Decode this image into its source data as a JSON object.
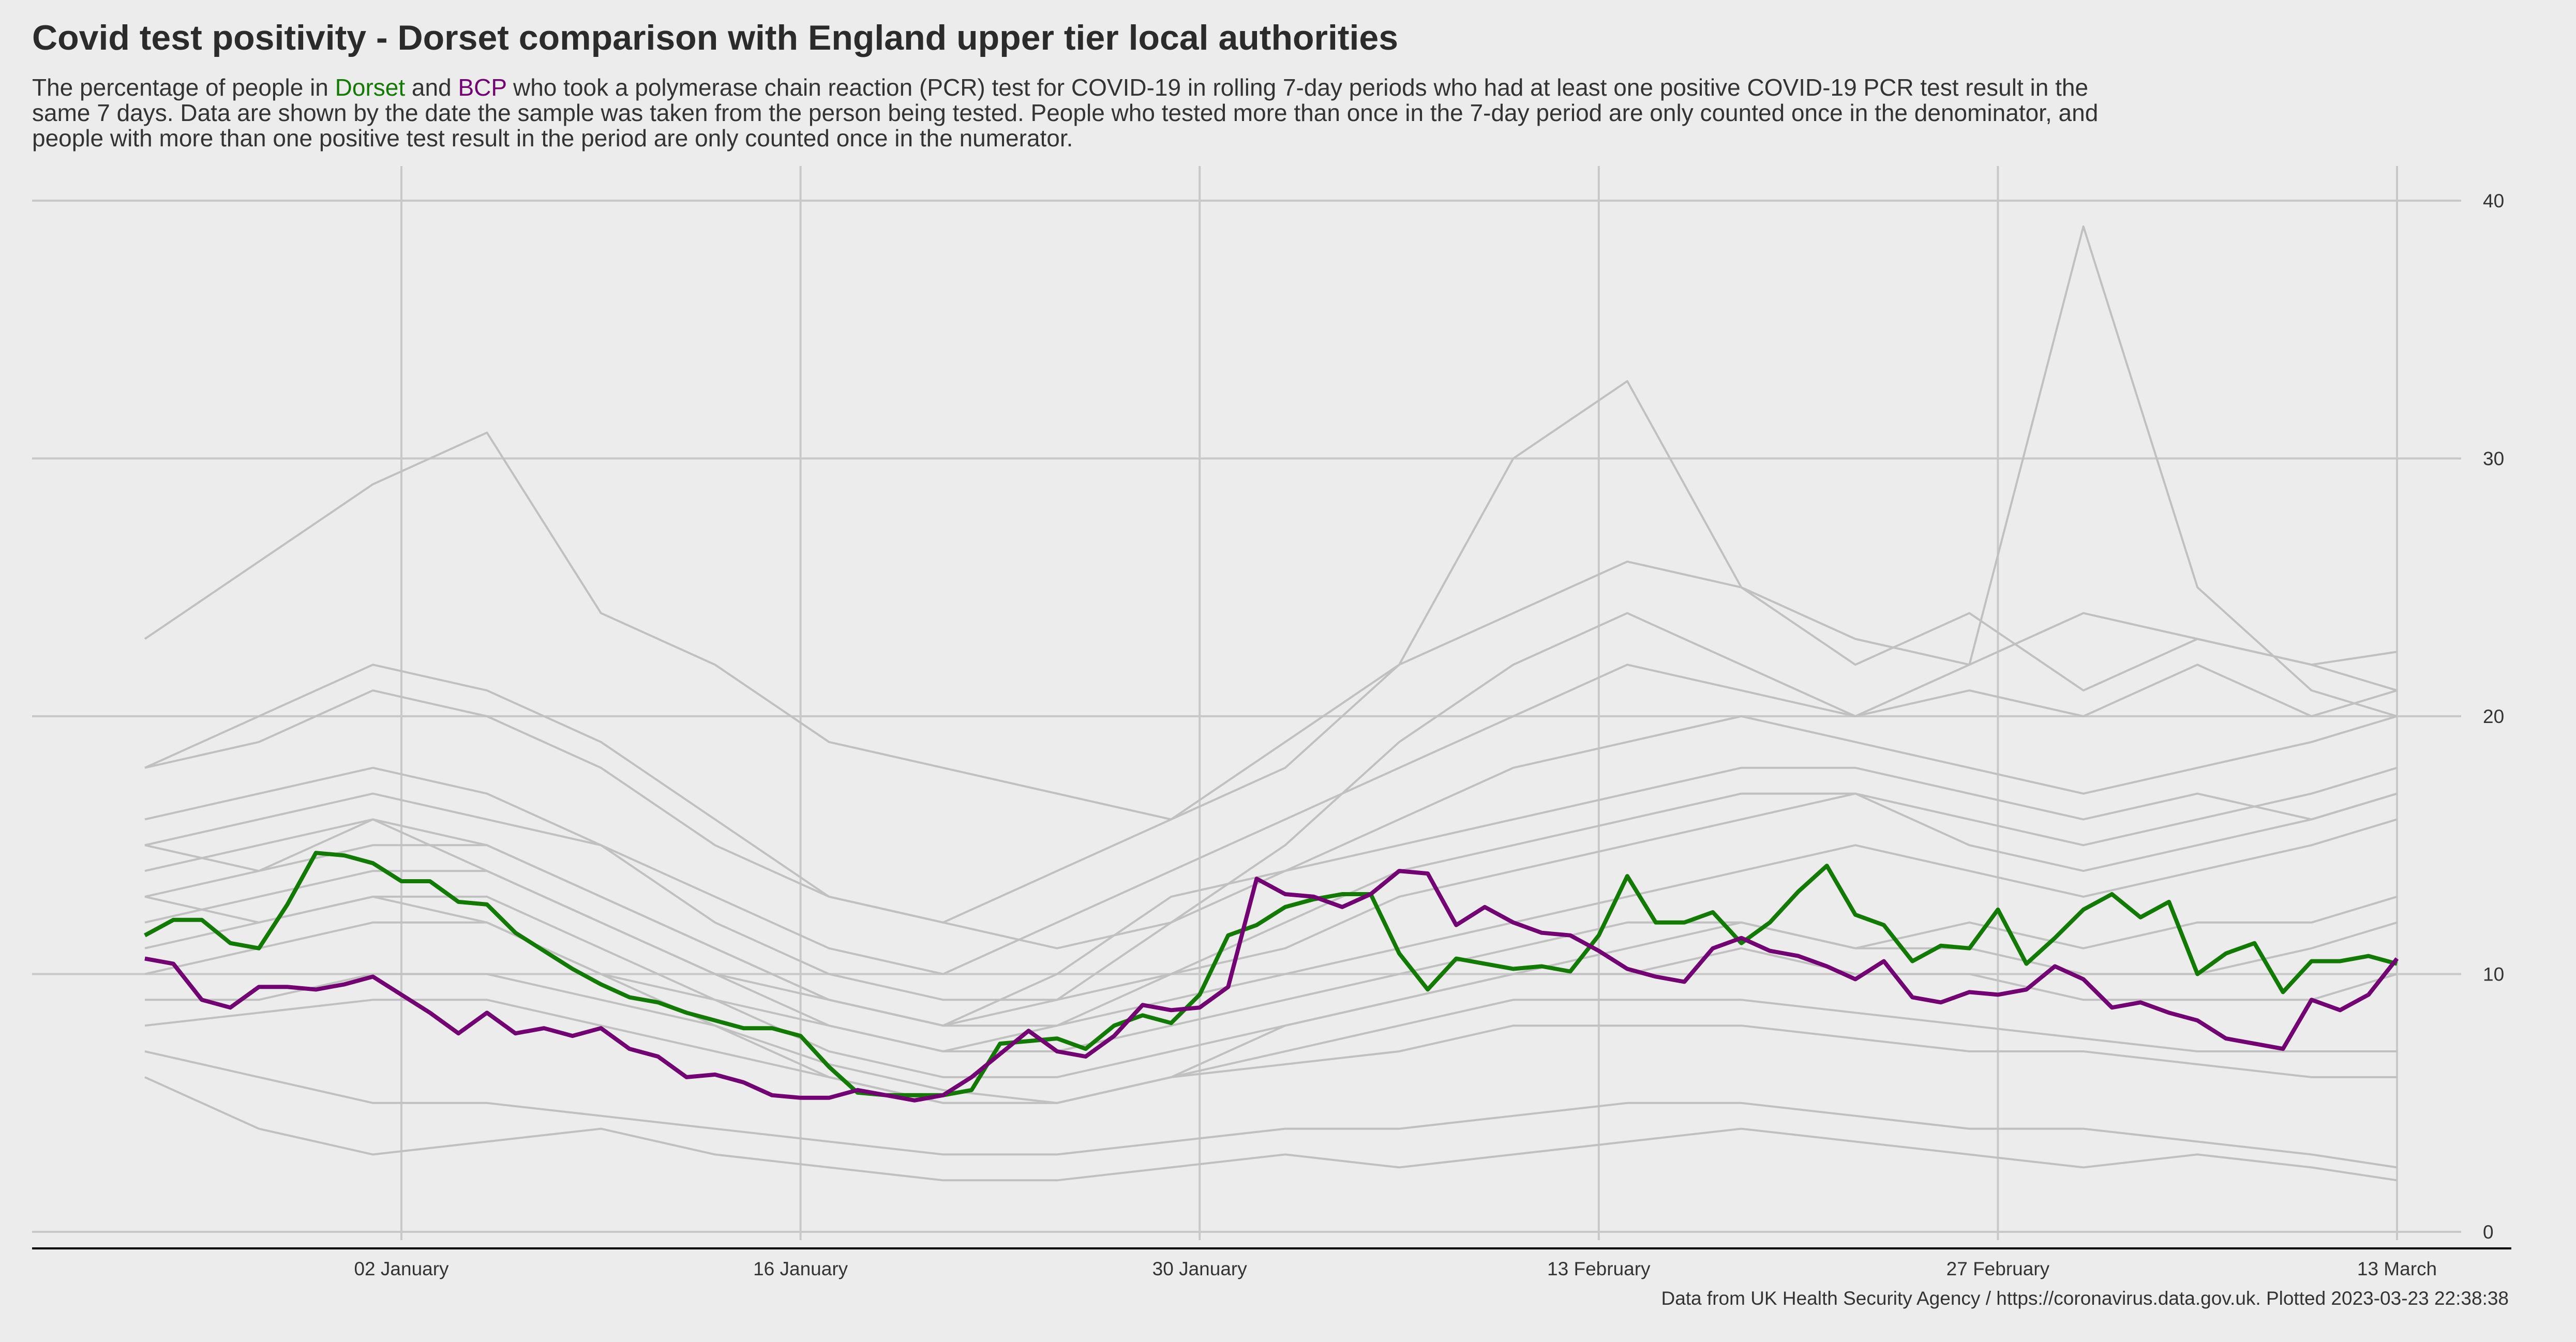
{
  "title": "Covid test positivity - Dorset comparison with England upper tier local authorities",
  "subtitle": {
    "part1": "The percentage of people in ",
    "dorset": "Dorset",
    "part2": " and ",
    "bcp": "BCP",
    "part3": " who took a polymerase chain reaction (PCR) test for COVID-19 in rolling 7-day periods who had at least one positive COVID-19 PCR test result in the same 7 days. Data are shown by the date the sample was taken from the person being tested. People who tested more than once in the 7-day period are only counted once in the denominator, and people with more than one positive test result in the period are only counted once in the numerator."
  },
  "caption": "Data from UK Health Security Agency / https://coronavirus.data.gov.uk. Plotted 2023-03-23 22:38:38",
  "colors": {
    "dorset": "#127a00",
    "bcp": "#720072",
    "other": "#c0c0c0",
    "grid": "#c8c8c8",
    "background": "#ececec"
  },
  "chart_data": {
    "type": "line",
    "title": "Covid test positivity - Dorset comparison with England upper tier local authorities",
    "xlabel": "",
    "ylabel": "",
    "y_axis_position": "right",
    "ylim": [
      0,
      40
    ],
    "xlim": [
      "2022-12-24",
      "2023-03-13"
    ],
    "grid": true,
    "legend": "none (series named in subtitle text)",
    "y_ticks": [
      "0",
      "10",
      "20",
      "30",
      "40"
    ],
    "x_ticks": [
      {
        "date": "2023-01-02",
        "label": "02 January"
      },
      {
        "date": "2023-01-16",
        "label": "16 January"
      },
      {
        "date": "2023-01-30",
        "label": "30 January"
      },
      {
        "date": "2023-02-13",
        "label": "13 February"
      },
      {
        "date": "2023-02-27",
        "label": "27 February"
      },
      {
        "date": "2023-03-13",
        "label": "13 March"
      }
    ],
    "x": [
      "2022-12-24",
      "2022-12-25",
      "2022-12-26",
      "2022-12-27",
      "2022-12-28",
      "2022-12-29",
      "2022-12-30",
      "2022-12-31",
      "2023-01-01",
      "2023-01-02",
      "2023-01-03",
      "2023-01-04",
      "2023-01-05",
      "2023-01-06",
      "2023-01-07",
      "2023-01-08",
      "2023-01-09",
      "2023-01-10",
      "2023-01-11",
      "2023-01-12",
      "2023-01-13",
      "2023-01-14",
      "2023-01-15",
      "2023-01-16",
      "2023-01-17",
      "2023-01-18",
      "2023-01-19",
      "2023-01-20",
      "2023-01-21",
      "2023-01-22",
      "2023-01-23",
      "2023-01-24",
      "2023-01-25",
      "2023-01-26",
      "2023-01-27",
      "2023-01-28",
      "2023-01-29",
      "2023-01-30",
      "2023-01-31",
      "2023-02-01",
      "2023-02-02",
      "2023-02-03",
      "2023-02-04",
      "2023-02-05",
      "2023-02-06",
      "2023-02-07",
      "2023-02-08",
      "2023-02-09",
      "2023-02-10",
      "2023-02-11",
      "2023-02-12",
      "2023-02-13",
      "2023-02-14",
      "2023-02-15",
      "2023-02-16",
      "2023-02-17",
      "2023-02-18",
      "2023-02-19",
      "2023-02-20",
      "2023-02-21",
      "2023-02-22",
      "2023-02-23",
      "2023-02-24",
      "2023-02-25",
      "2023-02-26",
      "2023-02-27",
      "2023-02-28",
      "2023-03-01",
      "2023-03-02",
      "2023-03-03",
      "2023-03-04",
      "2023-03-05",
      "2023-03-06",
      "2023-03-07",
      "2023-03-08",
      "2023-03-09",
      "2023-03-10",
      "2023-03-11",
      "2023-03-12",
      "2023-03-13"
    ],
    "series": [
      {
        "name": "Dorset",
        "color": "#127a00",
        "values": [
          11.5,
          12.1,
          12.1,
          11.2,
          11.0,
          12.7,
          14.7,
          14.6,
          14.3,
          13.6,
          13.6,
          12.8,
          12.7,
          11.6,
          10.9,
          10.2,
          9.6,
          9.1,
          8.9,
          8.5,
          8.2,
          7.9,
          7.9,
          7.6,
          6.4,
          5.4,
          5.3,
          5.3,
          5.3,
          5.5,
          7.3,
          7.4,
          7.5,
          7.1,
          8.0,
          8.4,
          8.1,
          9.2,
          11.5,
          11.9,
          12.6,
          12.9,
          13.1,
          13.1,
          10.8,
          9.4,
          10.6,
          10.4,
          10.2,
          10.3,
          10.1,
          11.5,
          13.8,
          12.0,
          12.0,
          12.4,
          11.2,
          12.0,
          13.2,
          14.2,
          12.3,
          11.9,
          10.5,
          11.1,
          11.0,
          12.5,
          10.4,
          11.4,
          12.5,
          13.1,
          12.2,
          12.8,
          10.0,
          10.8,
          11.2,
          9.3,
          10.5,
          10.5,
          10.7,
          10.4
        ]
      },
      {
        "name": "BCP",
        "color": "#720072",
        "values": [
          10.6,
          10.4,
          9.0,
          8.7,
          9.5,
          9.5,
          9.4,
          9.6,
          9.9,
          9.2,
          8.5,
          7.7,
          8.5,
          7.7,
          7.9,
          7.6,
          7.9,
          7.1,
          6.8,
          6.0,
          6.1,
          5.8,
          5.3,
          5.2,
          5.2,
          5.5,
          5.3,
          5.1,
          5.3,
          6.0,
          6.9,
          7.8,
          7.0,
          6.8,
          7.6,
          8.8,
          8.6,
          8.7,
          9.5,
          13.7,
          13.1,
          13.0,
          12.6,
          13.1,
          14.0,
          13.9,
          11.9,
          12.6,
          12.0,
          11.6,
          11.5,
          10.9,
          10.2,
          9.9,
          9.7,
          11.0,
          11.4,
          10.9,
          10.7,
          10.3,
          9.8,
          10.5,
          9.1,
          8.9,
          9.3,
          9.2,
          9.4,
          10.3,
          9.8,
          8.7,
          8.9,
          8.5,
          8.2,
          7.5,
          7.3,
          7.1,
          9.0,
          8.6,
          9.2,
          10.6
        ]
      }
    ],
    "other_authorities": {
      "description_visible": false,
      "x": [
        "2022-12-24",
        "2022-12-28",
        "2023-01-01",
        "2023-01-05",
        "2023-01-09",
        "2023-01-13",
        "2023-01-17",
        "2023-01-21",
        "2023-01-25",
        "2023-01-29",
        "2023-02-02",
        "2023-02-06",
        "2023-02-10",
        "2023-02-14",
        "2023-02-18",
        "2023-02-22",
        "2023-02-26",
        "2023-03-02",
        "2023-03-06",
        "2023-03-10",
        "2023-03-13"
      ],
      "series": [
        {
          "values": [
            23,
            26,
            29,
            31,
            24,
            22,
            19,
            18,
            17,
            16,
            18,
            22,
            24,
            26,
            25,
            23,
            22,
            24,
            23,
            22,
            22.5
          ]
        },
        {
          "values": [
            18,
            19,
            21,
            20,
            18,
            15,
            13,
            12,
            14,
            16,
            19,
            22,
            30,
            33,
            25,
            22,
            24,
            21,
            23,
            22,
            21
          ]
        },
        {
          "values": [
            15,
            16,
            17,
            16,
            15,
            13,
            11,
            10,
            12,
            14,
            16,
            18,
            20,
            22,
            21,
            20,
            22,
            39,
            25,
            21,
            20
          ]
        },
        {
          "values": [
            6,
            4,
            3,
            3.5,
            4,
            3,
            2.5,
            2,
            2,
            2.5,
            3,
            2.5,
            3,
            3.5,
            4,
            3.5,
            3,
            2.5,
            3,
            2.5,
            2
          ]
        },
        {
          "values": [
            7,
            6,
            5,
            5,
            4.5,
            4,
            3.5,
            3,
            3,
            3.5,
            4,
            4,
            4.5,
            5,
            5,
            4.5,
            4,
            4,
            3.5,
            3,
            2.5
          ]
        },
        {
          "values": [
            14,
            15,
            16,
            15,
            13,
            11,
            9,
            8,
            8,
            9,
            10,
            11,
            12,
            13,
            14,
            15,
            14,
            13,
            14,
            15,
            16
          ]
        },
        {
          "values": [
            12,
            13,
            14,
            14,
            12,
            10,
            8,
            7,
            7,
            8,
            9,
            10,
            11,
            12,
            12,
            11,
            12,
            11,
            12,
            12,
            13
          ]
        },
        {
          "values": [
            10,
            11,
            12,
            12,
            10,
            9,
            7,
            6,
            6,
            7,
            8,
            9,
            10,
            10,
            11,
            10,
            10,
            9,
            9,
            9,
            10
          ]
        },
        {
          "values": [
            9,
            9,
            10,
            10,
            9,
            8,
            6.5,
            5.5,
            5,
            6,
            7,
            8,
            9,
            9,
            9,
            8.5,
            8,
            7.5,
            7,
            7,
            7
          ]
        },
        {
          "values": [
            16,
            17,
            18,
            17,
            15,
            12,
            10,
            9,
            9,
            10,
            12,
            14,
            15,
            16,
            17,
            17,
            16,
            15,
            16,
            17,
            18
          ]
        },
        {
          "values": [
            8,
            8.5,
            9,
            9,
            8,
            7,
            6,
            5,
            5,
            6,
            6.5,
            7,
            8,
            8,
            8,
            7.5,
            7,
            7,
            6.5,
            6,
            6
          ]
        },
        {
          "values": [
            13,
            14,
            15,
            15,
            13,
            11,
            9,
            8,
            9,
            12,
            15,
            19,
            22,
            24,
            22,
            20,
            21,
            20,
            22,
            20,
            21
          ]
        },
        {
          "values": [
            11,
            12,
            13,
            13,
            11,
            9,
            8,
            7,
            8,
            10,
            11,
            13,
            14,
            15,
            16,
            17,
            15,
            14,
            15,
            16,
            17
          ]
        },
        {
          "values": [
            18,
            20,
            22,
            21,
            19,
            16,
            13,
            12,
            11,
            12,
            14,
            16,
            18,
            19,
            20,
            19,
            18,
            17,
            18,
            19,
            20
          ]
        },
        {
          "values": [
            13,
            12,
            13,
            12,
            10,
            8,
            6,
            5,
            5,
            6,
            8,
            9,
            10,
            11,
            12,
            11,
            11,
            10,
            10,
            11,
            12
          ]
        },
        {
          "values": [
            15,
            14,
            16,
            14,
            12,
            10,
            9,
            8,
            10,
            13,
            14,
            15,
            16,
            17,
            18,
            18,
            17,
            16,
            17,
            16,
            17
          ]
        }
      ]
    }
  }
}
